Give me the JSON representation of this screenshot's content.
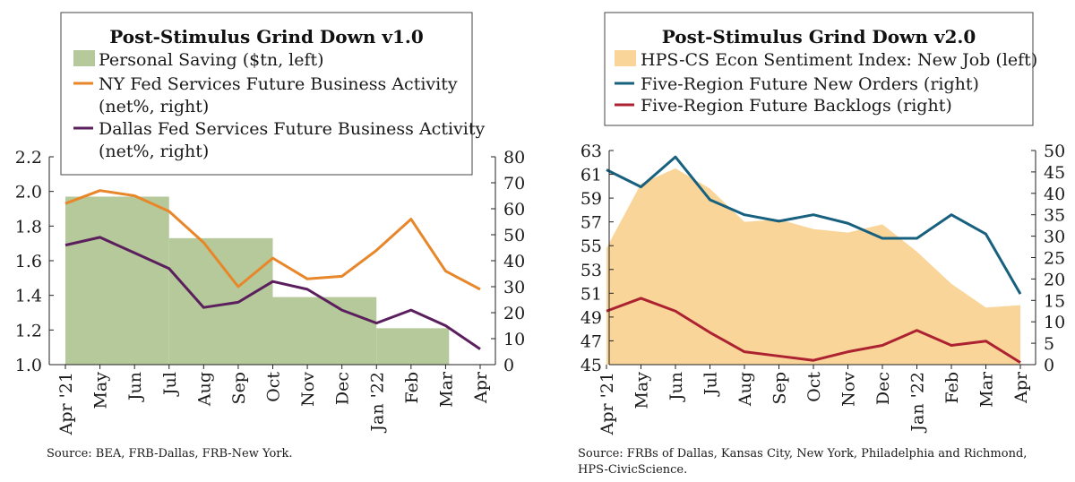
{
  "chart_data": [
    {
      "type": "area",
      "title": "Post-Stimulus Grind Down v1.0",
      "categories": [
        "Apr '21",
        "May",
        "Jun",
        "Jul",
        "Aug",
        "Sep",
        "Oct",
        "Nov",
        "Dec",
        "Jan '22",
        "Feb",
        "Mar",
        "Apr"
      ],
      "left_axis": {
        "min": 1.0,
        "max": 2.2,
        "ticks": [
          "1.0",
          "1.2",
          "1.4",
          "1.6",
          "1.8",
          "2.0",
          "2.2"
        ]
      },
      "right_axis": {
        "min": 0,
        "max": 80,
        "ticks": [
          "0",
          "10",
          "20",
          "30",
          "40",
          "50",
          "60",
          "70",
          "80"
        ]
      },
      "series": [
        {
          "name": "Personal Saving ($tn, left)",
          "type": "step-area",
          "axis": "left",
          "color": "#b5c99a",
          "values": [
            1.97,
            1.97,
            1.97,
            1.73,
            1.73,
            1.73,
            1.39,
            1.39,
            1.39,
            1.21,
            1.21,
            1.21,
            null
          ]
        },
        {
          "name": "NY Fed Services Future Business Activity",
          "name_line2": "(net%, right)",
          "type": "line",
          "axis": "right",
          "color": "#e8862a",
          "values": [
            62,
            67,
            65,
            59,
            47,
            30,
            41,
            33,
            34,
            44,
            56,
            36,
            29
          ]
        },
        {
          "name": "Dallas Fed Services Future Business Activity",
          "name_line2": "(net%, right)",
          "type": "line",
          "axis": "right",
          "color": "#5b1f5e",
          "values": [
            46,
            49,
            43,
            37,
            22,
            24,
            32,
            29,
            21,
            16,
            21,
            15,
            6
          ]
        }
      ],
      "source": "Source:  BEA, FRB-Dallas, FRB-New York."
    },
    {
      "type": "area",
      "title": "Post-Stimulus Grind Down v2.0",
      "categories": [
        "Apr '21",
        "May",
        "Jun",
        "Jul",
        "Aug",
        "Sep",
        "Oct",
        "Nov",
        "Dec",
        "Jan '22",
        "Feb",
        "Mar",
        "Apr"
      ],
      "left_axis": {
        "min": 45,
        "max": 63,
        "ticks": [
          "45",
          "47",
          "49",
          "51",
          "53",
          "55",
          "57",
          "59",
          "61",
          "63"
        ]
      },
      "right_axis": {
        "min": 0,
        "max": 50,
        "ticks": [
          "0",
          "5",
          "10",
          "15",
          "20",
          "25",
          "30",
          "35",
          "40",
          "45",
          "50"
        ]
      },
      "series": [
        {
          "name": "HPS-CS Econ Sentiment Index: New Job (left)",
          "type": "area",
          "axis": "left",
          "color": "#fad59a",
          "values": [
            54.8,
            60.2,
            61.5,
            59.8,
            57.0,
            57.2,
            56.4,
            56.1,
            56.8,
            54.5,
            51.8,
            49.8,
            50.0
          ]
        },
        {
          "name": "Five-Region Future New Orders (right)",
          "type": "line",
          "axis": "right",
          "color": "#17607e",
          "values": [
            45.5,
            41.5,
            48.5,
            38.5,
            35.0,
            33.5,
            35.0,
            33.0,
            29.5,
            29.5,
            35.0,
            30.5,
            16.5
          ]
        },
        {
          "name": "Five-Region Future Backlogs (right)",
          "type": "line",
          "axis": "right",
          "color": "#ad2230",
          "values": [
            12.5,
            15.5,
            12.5,
            7.5,
            3.0,
            2.0,
            1.0,
            3.0,
            4.5,
            8.0,
            4.5,
            5.5,
            0.5
          ]
        }
      ],
      "source": "Source:  FRBs of Dallas, Kansas City, New York, Philadelphia and Richmond,",
      "source_line2": "HPS-CivicScience."
    }
  ]
}
